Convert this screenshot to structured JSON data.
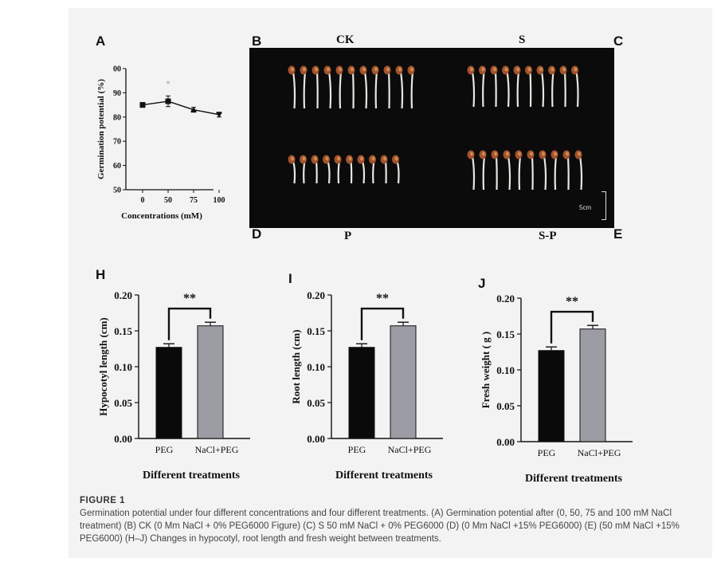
{
  "panels": {
    "A": "A",
    "B": "B",
    "C": "C",
    "D": "D",
    "E": "E",
    "H": "H",
    "I": "I",
    "J": "J"
  },
  "photo": {
    "ck": "CK",
    "s": "S",
    "p": "P",
    "sp": "S-P",
    "scale": "5cm"
  },
  "chart_data": [
    {
      "type": "line",
      "panel": "A",
      "x": [
        0,
        50,
        75,
        100
      ],
      "y": [
        85,
        86.5,
        83,
        81
      ],
      "error": [
        1,
        2.2,
        1,
        1
      ],
      "ylabel": "Germination potential (%)",
      "xlabel": "Concentrations (mM)",
      "xticks": [
        "0",
        "50",
        "75",
        "100"
      ],
      "yticks": [
        "50",
        "60",
        "70",
        "80",
        "90",
        "00"
      ],
      "ylim": [
        50,
        100
      ],
      "annotation": "*"
    },
    {
      "type": "bar",
      "panel": "H",
      "categories": [
        "PEG",
        "NaCl+PEG"
      ],
      "values": [
        0.127,
        0.157
      ],
      "error": [
        0.005,
        0.005
      ],
      "ylabel": "Hypocotyl length (cm)",
      "xlabel": "Different treatments",
      "yticks": [
        "0.00",
        "0.05",
        "0.10",
        "0.15",
        "0.20"
      ],
      "ylim": [
        0,
        0.2
      ],
      "significance": "**"
    },
    {
      "type": "bar",
      "panel": "I",
      "categories": [
        "PEG",
        "NaCl+PEG"
      ],
      "values": [
        0.127,
        0.157
      ],
      "error": [
        0.005,
        0.005
      ],
      "ylabel": "Root length (cm)",
      "xlabel": "Different treatments",
      "yticks": [
        "0.00",
        "0.05",
        "0.10",
        "0.15",
        "0.20"
      ],
      "ylim": [
        0,
        0.2
      ],
      "significance": "**"
    },
    {
      "type": "bar",
      "panel": "J",
      "categories": [
        "PEG",
        "NaCl+PEG"
      ],
      "values": [
        0.127,
        0.157
      ],
      "error": [
        0.005,
        0.005
      ],
      "ylabel": "Fresh weight ( g )",
      "xlabel": "Different treatments",
      "yticks": [
        "0.00",
        "0.05",
        "0.10",
        "0.15",
        "0.20"
      ],
      "ylim": [
        0,
        0.2
      ],
      "significance": "**"
    }
  ],
  "colors": {
    "bar1": "#0a0a0a",
    "bar2": "#9c9ca4"
  },
  "caption": {
    "figure_label": "FIGURE 1",
    "text": "Germination potential under four different concentrations and four different treatments. (A) Germination potential after (0, 50, 75 and 100 mM NaCl treatment) (B) CK (0 Mm NaCl + 0% PEG6000 Figure) (C) S 50 mM NaCl + 0% PEG6000 (D) (0 Mm NaCl +15% PEG6000) (E) (50 mM NaCl +15% PEG6000) (H–J) Changes in hypocotyl, root length and fresh weight between treatments."
  }
}
